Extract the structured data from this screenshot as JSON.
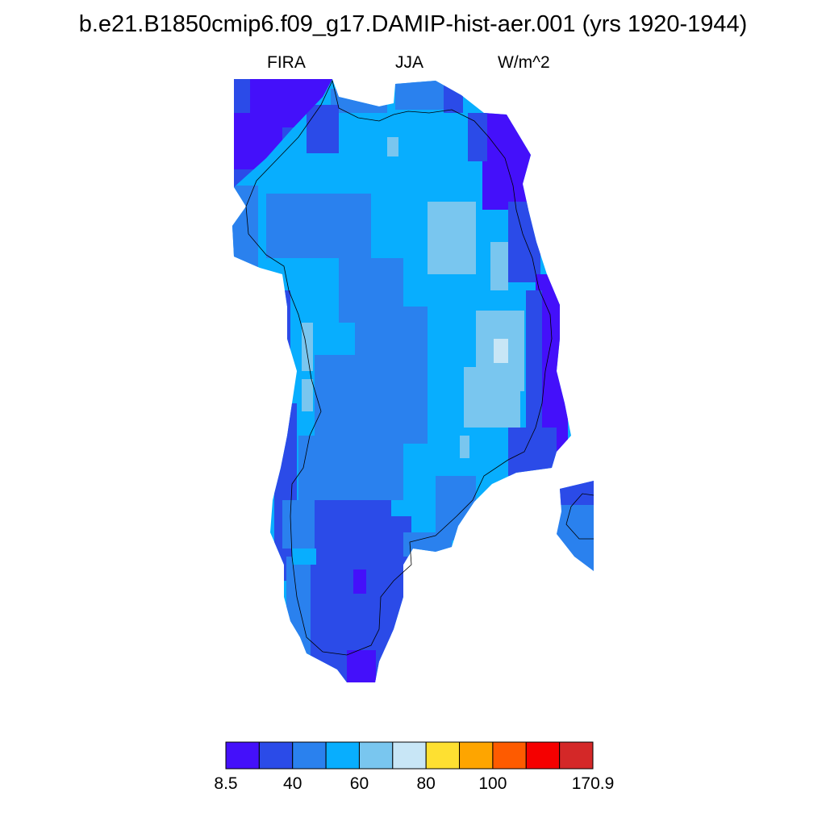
{
  "title": "b.e21.B1850cmip6.f09_g17.DAMIP-hist-aer.001 (yrs 1920-1944)",
  "subtitle": {
    "left": "FIRA",
    "center": "JJA",
    "right": "W/m^2"
  },
  "colors": {
    "c1": "#4410fa",
    "c2": "#2b4be8",
    "c3": "#2a81ee",
    "c4": "#08aefe",
    "c5": "#79c6ef",
    "c6": "#c8e6f6",
    "c7": "#fee031",
    "c8": "#fea500",
    "c9": "#fe5b00",
    "c10": "#f50000",
    "c11": "#d42828"
  },
  "colorbar": {
    "colors": [
      "#4410fa",
      "#2b4be8",
      "#2a81ee",
      "#08aefe",
      "#79c6ef",
      "#c8e6f6",
      "#fee031",
      "#fea500",
      "#fe5b00",
      "#f50000",
      "#d42828"
    ],
    "labels": [
      {
        "text": "8.5",
        "index": 0
      },
      {
        "text": "40",
        "index": 2
      },
      {
        "text": "60",
        "index": 4
      },
      {
        "text": "80",
        "index": 6
      },
      {
        "text": "100",
        "index": 8
      },
      {
        "text": "170.9",
        "index": 11
      }
    ]
  }
}
